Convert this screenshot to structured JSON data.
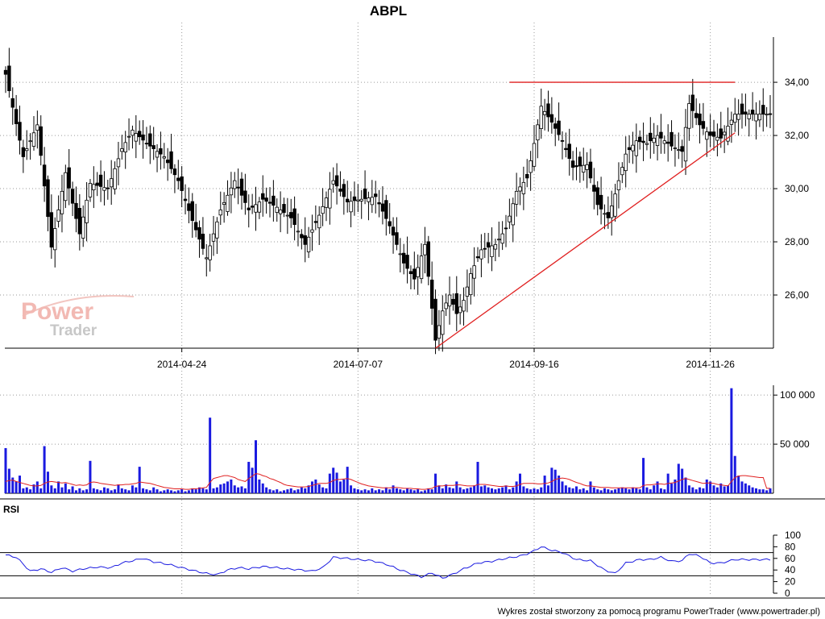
{
  "window": {
    "title": "ABPL",
    "footer": "Wykres został stworzony za pomocą programu PowerTrader (www.powertrader.pl)",
    "watermark_top": "Power",
    "watermark_bottom": "Trader",
    "rsi_label": "RSI"
  },
  "colors": {
    "candle": "#000000",
    "resistance": "#e02020",
    "support": "#e02020",
    "volume_bar": "#1a1ae0",
    "volume_avg": "#e02020",
    "rsi_line": "#1a1ae0"
  },
  "chart_data": [
    {
      "type": "candlestick",
      "title": "ABPL",
      "x_tick_labels": [
        "2014-04-24",
        "2014-07-07",
        "2014-09-16",
        "2014-11-26"
      ],
      "x_tick_index": [
        50,
        100,
        150,
        200
      ],
      "y_tick_labels": [
        "26,00",
        "28,00",
        "30,00",
        "32,00",
        "34,00"
      ],
      "y_ticks": [
        26,
        28,
        30,
        32,
        34
      ],
      "ylim": [
        24.0,
        35.7
      ],
      "grid": true,
      "trendlines": [
        {
          "name": "resistance",
          "from": [
            143,
            34.0
          ],
          "to": [
            207,
            34.0
          ]
        },
        {
          "name": "support",
          "from": [
            122,
            24.0
          ],
          "to": [
            207,
            32.1
          ]
        }
      ],
      "anchors": [
        [
          0,
          34.3
        ],
        [
          5,
          31.2
        ],
        [
          9,
          32.4
        ],
        [
          13,
          27.8
        ],
        [
          17,
          30.6
        ],
        [
          21,
          28.3
        ],
        [
          24,
          30.2
        ],
        [
          29,
          30.0
        ],
        [
          33,
          31.5
        ],
        [
          36,
          32.2
        ],
        [
          40,
          31.7
        ],
        [
          45,
          31.2
        ],
        [
          49,
          30.3
        ],
        [
          53,
          28.8
        ],
        [
          57,
          27.4
        ],
        [
          61,
          29.2
        ],
        [
          65,
          30.3
        ],
        [
          69,
          29.2
        ],
        [
          73,
          29.6
        ],
        [
          77,
          29.3
        ],
        [
          81,
          28.9
        ],
        [
          85,
          27.9
        ],
        [
          89,
          29.0
        ],
        [
          93,
          30.3
        ],
        [
          97,
          29.5
        ],
        [
          101,
          29.6
        ],
        [
          105,
          29.7
        ],
        [
          109,
          28.6
        ],
        [
          113,
          27.2
        ],
        [
          116,
          26.6
        ],
        [
          119,
          27.9
        ],
        [
          122,
          24.3
        ],
        [
          124,
          25.4
        ],
        [
          126,
          26.0
        ],
        [
          128,
          25.3
        ],
        [
          130,
          25.8
        ],
        [
          132,
          26.8
        ],
        [
          135,
          27.7
        ],
        [
          139,
          27.9
        ],
        [
          142,
          28.5
        ],
        [
          145,
          29.9
        ],
        [
          148,
          30.4
        ],
        [
          150,
          31.7
        ],
        [
          152,
          33.1
        ],
        [
          155,
          32.5
        ],
        [
          158,
          31.8
        ],
        [
          161,
          30.8
        ],
        [
          165,
          30.9
        ],
        [
          168,
          29.4
        ],
        [
          171,
          28.9
        ],
        [
          173,
          29.8
        ],
        [
          176,
          31.3
        ],
        [
          179,
          31.8
        ],
        [
          182,
          31.7
        ],
        [
          185,
          32.0
        ],
        [
          189,
          31.6
        ],
        [
          192,
          31.4
        ],
        [
          194,
          33.2
        ],
        [
          197,
          32.4
        ],
        [
          200,
          32.0
        ],
        [
          203,
          31.9
        ],
        [
          207,
          32.8
        ]
      ]
    },
    {
      "type": "bar",
      "name": "volume",
      "y_tick_labels": [
        "50 000",
        "100 000"
      ],
      "y_ticks": [
        50000,
        100000
      ],
      "ylim": [
        0,
        110000
      ],
      "values_note": "",
      "values": [
        46000,
        25000,
        16000,
        12000,
        18000,
        5000,
        6000,
        4000,
        9000,
        12000,
        5000,
        48000,
        22000,
        8000,
        5000,
        12000,
        6000,
        10000,
        4000,
        7000,
        3000,
        5000,
        3000,
        4000,
        33000,
        5000,
        4000,
        3000,
        6000,
        5000,
        3000,
        4000,
        9000,
        5000,
        4000,
        3000,
        8000,
        6000,
        27000,
        5000,
        4000,
        3000,
        6000,
        4000,
        2000,
        3000,
        4000,
        3000,
        2000,
        3000,
        4000,
        2000,
        3000,
        5000,
        4000,
        6000,
        5000,
        4000,
        77000,
        5000,
        6000,
        9000,
        10000,
        12000,
        14000,
        8000,
        6000,
        7000,
        5000,
        32000,
        26000,
        54000,
        14000,
        10000,
        6000,
        4000,
        3000,
        4000,
        2000,
        3000,
        4000,
        5000,
        3000,
        4000,
        6000,
        5000,
        8000,
        12000,
        14000,
        9000,
        6000,
        5000,
        20000,
        26000,
        21000,
        12000,
        14000,
        27000,
        8000,
        5000,
        4000,
        3000,
        4000,
        3000,
        5000,
        3000,
        4000,
        3000,
        6000,
        4000,
        8000,
        5000,
        4000,
        3000,
        5000,
        4000,
        3000,
        4000,
        2000,
        3000,
        5000,
        4000,
        20000,
        8000,
        5000,
        9000,
        6000,
        5000,
        12000,
        6000,
        4000,
        5000,
        6000,
        8000,
        32000,
        7000,
        8000,
        6000,
        5000,
        4000,
        5000,
        6000,
        8000,
        4000,
        6000,
        12000,
        20000,
        7000,
        5000,
        4000,
        5000,
        4000,
        6000,
        18000,
        8000,
        26000,
        24000,
        18000,
        12000,
        8000,
        6000,
        5000,
        7000,
        4000,
        5000,
        3000,
        12000,
        6000,
        4000,
        3000,
        5000,
        4000,
        3000,
        4000,
        5000,
        6000,
        5000,
        4000,
        6000,
        5000,
        4000,
        36000,
        6000,
        4000,
        8000,
        12000,
        5000,
        4000,
        20000,
        10000,
        14000,
        30000,
        25000,
        16000,
        8000,
        6000,
        4000,
        6000,
        5000,
        14000,
        12000,
        8000,
        6000,
        10000,
        7000,
        8000,
        107000,
        38000,
        18000,
        12000,
        10000,
        8000,
        6000,
        5000,
        4000,
        4000,
        3000,
        5000
      ],
      "average": [
        12000,
        13000,
        13500,
        12000,
        11000,
        10000,
        9000,
        8000,
        7500,
        7500,
        8000,
        10000,
        11500,
        12000,
        11500,
        11000,
        10500,
        11000,
        10000,
        9000,
        8000,
        8500,
        8000,
        8500,
        11000,
        11500,
        11000,
        10000,
        9500,
        9000,
        8500,
        8000,
        8500,
        8500,
        9000,
        9000,
        9500,
        10000,
        11500,
        11000,
        10500,
        10000,
        9000,
        8000,
        7000,
        6000,
        5500,
        5000,
        4500,
        4500,
        4500,
        4000,
        4000,
        4500,
        4500,
        5000,
        5500,
        6000,
        11000,
        15000,
        16000,
        17000,
        18000,
        18000,
        17000,
        16000,
        14000,
        13000,
        12000,
        15000,
        17500,
        20000,
        19500,
        18000,
        17000,
        15000,
        14000,
        12500,
        11000,
        9000,
        8000,
        7500,
        7000,
        6500,
        6500,
        6500,
        7000,
        8000,
        9000,
        10000,
        10000,
        10000,
        11000,
        13000,
        14000,
        14000,
        14500,
        15000,
        14000,
        12500,
        11000,
        9500,
        8500,
        7500,
        7000,
        6500,
        6000,
        5500,
        5500,
        5500,
        6000,
        6000,
        5500,
        5000,
        5000,
        5000,
        4500,
        4500,
        4000,
        4000,
        4500,
        5000,
        7000,
        7500,
        7500,
        8000,
        8000,
        8000,
        8500,
        8500,
        8000,
        7500,
        7500,
        7500,
        9000,
        9000,
        9000,
        8500,
        8000,
        7500,
        7000,
        7000,
        7500,
        7000,
        7000,
        7500,
        9000,
        10000,
        10000,
        10000,
        10000,
        9500,
        9500,
        10000,
        10500,
        12000,
        14000,
        15000,
        15500,
        15000,
        14000,
        12500,
        11000,
        10000,
        8500,
        7500,
        7500,
        7000,
        6500,
        6000,
        6000,
        6000,
        5500,
        5500,
        5500,
        5500,
        5500,
        5500,
        5500,
        5500,
        5500,
        8000,
        8500,
        8500,
        9000,
        9500,
        9500,
        9000,
        10000,
        10500,
        11000,
        12500,
        14000,
        15000,
        14000,
        13000,
        12000,
        11000,
        10000,
        10500,
        10500,
        10000,
        9000,
        8500,
        8000,
        7500,
        12000,
        16000,
        17500,
        18000,
        18000,
        17500,
        17000,
        16500,
        16000,
        16000,
        5000,
        5000
      ]
    },
    {
      "type": "line",
      "name": "RSI",
      "y_tick_labels": [
        "0",
        "20",
        "40",
        "60",
        "80",
        "100"
      ],
      "y_ticks": [
        0,
        20,
        40,
        60,
        80,
        100
      ],
      "ylim": [
        0,
        100
      ],
      "reference_lines": [
        30,
        70
      ],
      "anchors": [
        [
          0,
          66
        ],
        [
          3,
          62
        ],
        [
          7,
          38
        ],
        [
          10,
          42
        ],
        [
          13,
          36
        ],
        [
          16,
          44
        ],
        [
          19,
          38
        ],
        [
          22,
          42
        ],
        [
          26,
          45
        ],
        [
          30,
          44
        ],
        [
          33,
          52
        ],
        [
          36,
          56
        ],
        [
          39,
          60
        ],
        [
          42,
          54
        ],
        [
          46,
          50
        ],
        [
          50,
          44
        ],
        [
          54,
          38
        ],
        [
          57,
          34
        ],
        [
          60,
          32
        ],
        [
          63,
          40
        ],
        [
          66,
          44
        ],
        [
          69,
          42
        ],
        [
          73,
          46
        ],
        [
          77,
          44
        ],
        [
          80,
          42
        ],
        [
          84,
          40
        ],
        [
          87,
          38
        ],
        [
          90,
          44
        ],
        [
          93,
          62
        ],
        [
          97,
          60
        ],
        [
          100,
          58
        ],
        [
          104,
          56
        ],
        [
          108,
          50
        ],
        [
          112,
          40
        ],
        [
          115,
          34
        ],
        [
          118,
          28
        ],
        [
          121,
          35
        ],
        [
          124,
          26
        ],
        [
          127,
          33
        ],
        [
          130,
          42
        ],
        [
          134,
          52
        ],
        [
          138,
          55
        ],
        [
          142,
          60
        ],
        [
          146,
          64
        ],
        [
          149,
          70
        ],
        [
          152,
          80
        ],
        [
          155,
          74
        ],
        [
          158,
          70
        ],
        [
          162,
          58
        ],
        [
          166,
          56
        ],
        [
          170,
          40
        ],
        [
          173,
          34
        ],
        [
          176,
          52
        ],
        [
          180,
          58
        ],
        [
          183,
          58
        ],
        [
          186,
          62
        ],
        [
          189,
          55
        ],
        [
          192,
          56
        ],
        [
          194,
          68
        ],
        [
          197,
          64
        ],
        [
          200,
          52
        ],
        [
          203,
          52
        ],
        [
          207,
          58
        ]
      ]
    }
  ]
}
